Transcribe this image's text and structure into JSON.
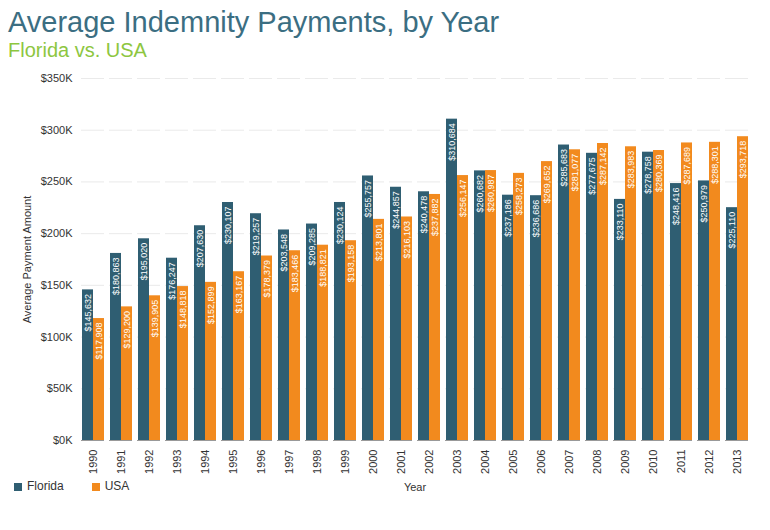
{
  "chart_data": {
    "type": "bar",
    "title": "Average Indemnity Payments, by Year",
    "subtitle": "Florida vs. USA",
    "x_label": "Year",
    "y_label": "Average Payment Amount",
    "categories": [
      "1990",
      "1991",
      "1992",
      "1993",
      "1994",
      "1995",
      "1996",
      "1997",
      "1998",
      "1999",
      "2000",
      "2001",
      "2002",
      "2003",
      "2004",
      "2005",
      "2006",
      "2007",
      "2008",
      "2009",
      "2010",
      "2011",
      "2012",
      "2013"
    ],
    "series": [
      {
        "name": "Florida",
        "color": "#2f5e72",
        "values": [
          145632,
          180863,
          195020,
          176247,
          207630,
          230107,
          219257,
          203548,
          209285,
          230124,
          255757,
          244857,
          240478,
          310684,
          260682,
          237186,
          236686,
          285683,
          277675,
          233110,
          278758,
          248416,
          250979,
          225110
        ],
        "value_labels": [
          "$145,632",
          "$180,863",
          "$195,020",
          "$176,247",
          "$207,630",
          "$230,107",
          "$219,257",
          "$203,548",
          "$209,285",
          "$230,124",
          "$255,757",
          "$244,857",
          "$240,478",
          "$310,684",
          "$260,682",
          "$237,186",
          "$236,686",
          "$285,683",
          "$277,675",
          "$233,110",
          "$278,758",
          "$248,416",
          "$250,979",
          "$225,110"
        ]
      },
      {
        "name": "USA",
        "color": "#f28a1e",
        "values": [
          117908,
          129200,
          139905,
          148818,
          152899,
          163167,
          178379,
          183466,
          188821,
          193158,
          213801,
          216103,
          237882,
          256147,
          260987,
          258273,
          269652,
          281077,
          287142,
          283983,
          280369,
          287689,
          288301,
          293718
        ],
        "value_labels": [
          "$117,908",
          "$129,200",
          "$139,905",
          "$148,818",
          "$152,899",
          "$163,167",
          "$178,379",
          "$183,466",
          "$188,821",
          "$193,158",
          "$213,801",
          "$216,103",
          "$237,882",
          "$256,147",
          "$260,987",
          "$258,273",
          "$269,652",
          "$281,077",
          "$287,142",
          "$283,983",
          "$280,369",
          "$287,689",
          "$288,301",
          "$293,718"
        ]
      }
    ],
    "ylim": [
      0,
      350000
    ],
    "yticks": [
      {
        "value": 0,
        "label": "$0K"
      },
      {
        "value": 50000,
        "label": "$50K"
      },
      {
        "value": 100000,
        "label": "$100K"
      },
      {
        "value": 150000,
        "label": "$150K"
      },
      {
        "value": 200000,
        "label": "$200K"
      },
      {
        "value": 250000,
        "label": "$250K"
      },
      {
        "value": 300000,
        "label": "$300K"
      },
      {
        "value": 350000,
        "label": "$350K"
      }
    ],
    "grid": true,
    "legend": "bottom",
    "data_labels": true
  }
}
